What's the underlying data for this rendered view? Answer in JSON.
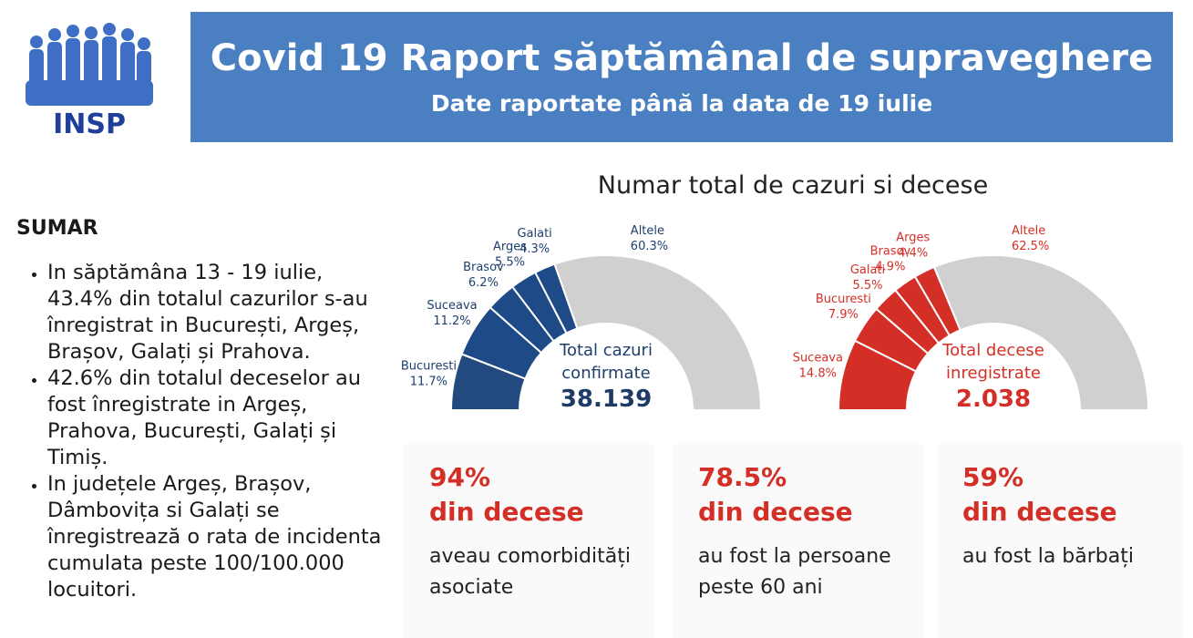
{
  "header": {
    "title": "Covid 19 Raport săptămânal de supraveghere",
    "subtitle": "Date raportate până la data de 19 iulie"
  },
  "logo": {
    "text": "INSP"
  },
  "summary": {
    "title": "SUMAR",
    "bullets": [
      "In săptămâna 13 - 19 iulie, 43.4% din totalul cazurilor s-au înregistrat in București, Argeș, Brașov, Galați și Prahova.",
      "42.6% din totalul deceselor au fost înregistrate in Argeș, Prahova, București, Galați și Timiș.",
      "In județele Argeș, Brașov, Dâmbovița si Galați se înregistrează o rata de incidenta cumulata peste 100/100.000 locuitori."
    ]
  },
  "chart_data": [
    {
      "type": "pie",
      "title": "Numar total de cazuri si decese",
      "center_label": "Total cazuri confirmate",
      "total": "38.139",
      "colors": {
        "highlight": "#1e4a88",
        "first": "#234a7e",
        "rest": "#d0d0d0",
        "label": "#1e3f6e"
      },
      "slices": [
        {
          "name": "Bucuresti",
          "value": 11.7,
          "label": "11.7%"
        },
        {
          "name": "Suceava",
          "value": 11.2,
          "label": "11.2%"
        },
        {
          "name": "Brasov",
          "value": 6.2,
          "label": "6.2%"
        },
        {
          "name": "Arges",
          "value": 5.5,
          "label": "5.5%"
        },
        {
          "name": "Galati",
          "value": 4.3,
          "label": "4.3%"
        },
        {
          "name": "Altele",
          "value": 60.3,
          "label": "60.3%"
        }
      ]
    },
    {
      "type": "pie",
      "center_label": "Total decese inregistrate",
      "total": "2.038",
      "colors": {
        "highlight": "#d42f26",
        "first": "#d42f26",
        "rest": "#d0d0d0",
        "label": "#d42f26"
      },
      "slices": [
        {
          "name": "Suceava",
          "value": 14.8,
          "label": "14.8%"
        },
        {
          "name": "Bucuresti",
          "value": 7.9,
          "label": "7.9%"
        },
        {
          "name": "Galati",
          "value": 5.5,
          "label": "5.5%"
        },
        {
          "name": "Brasov",
          "value": 4.9,
          "label": "4.9%"
        },
        {
          "name": "Arges",
          "value": 4.4,
          "label": "4.4%"
        },
        {
          "name": "Altele",
          "value": 62.5,
          "label": "62.5%"
        }
      ]
    }
  ],
  "stats": [
    {
      "pct": "94%",
      "what": "din decese",
      "desc": "aveau comorbidități asociate"
    },
    {
      "pct": "78.5%",
      "what": "din decese",
      "desc": "au fost la persoane peste 60 ani"
    },
    {
      "pct": "59%",
      "what": "din decese",
      "desc": "au fost la bărbați"
    }
  ]
}
